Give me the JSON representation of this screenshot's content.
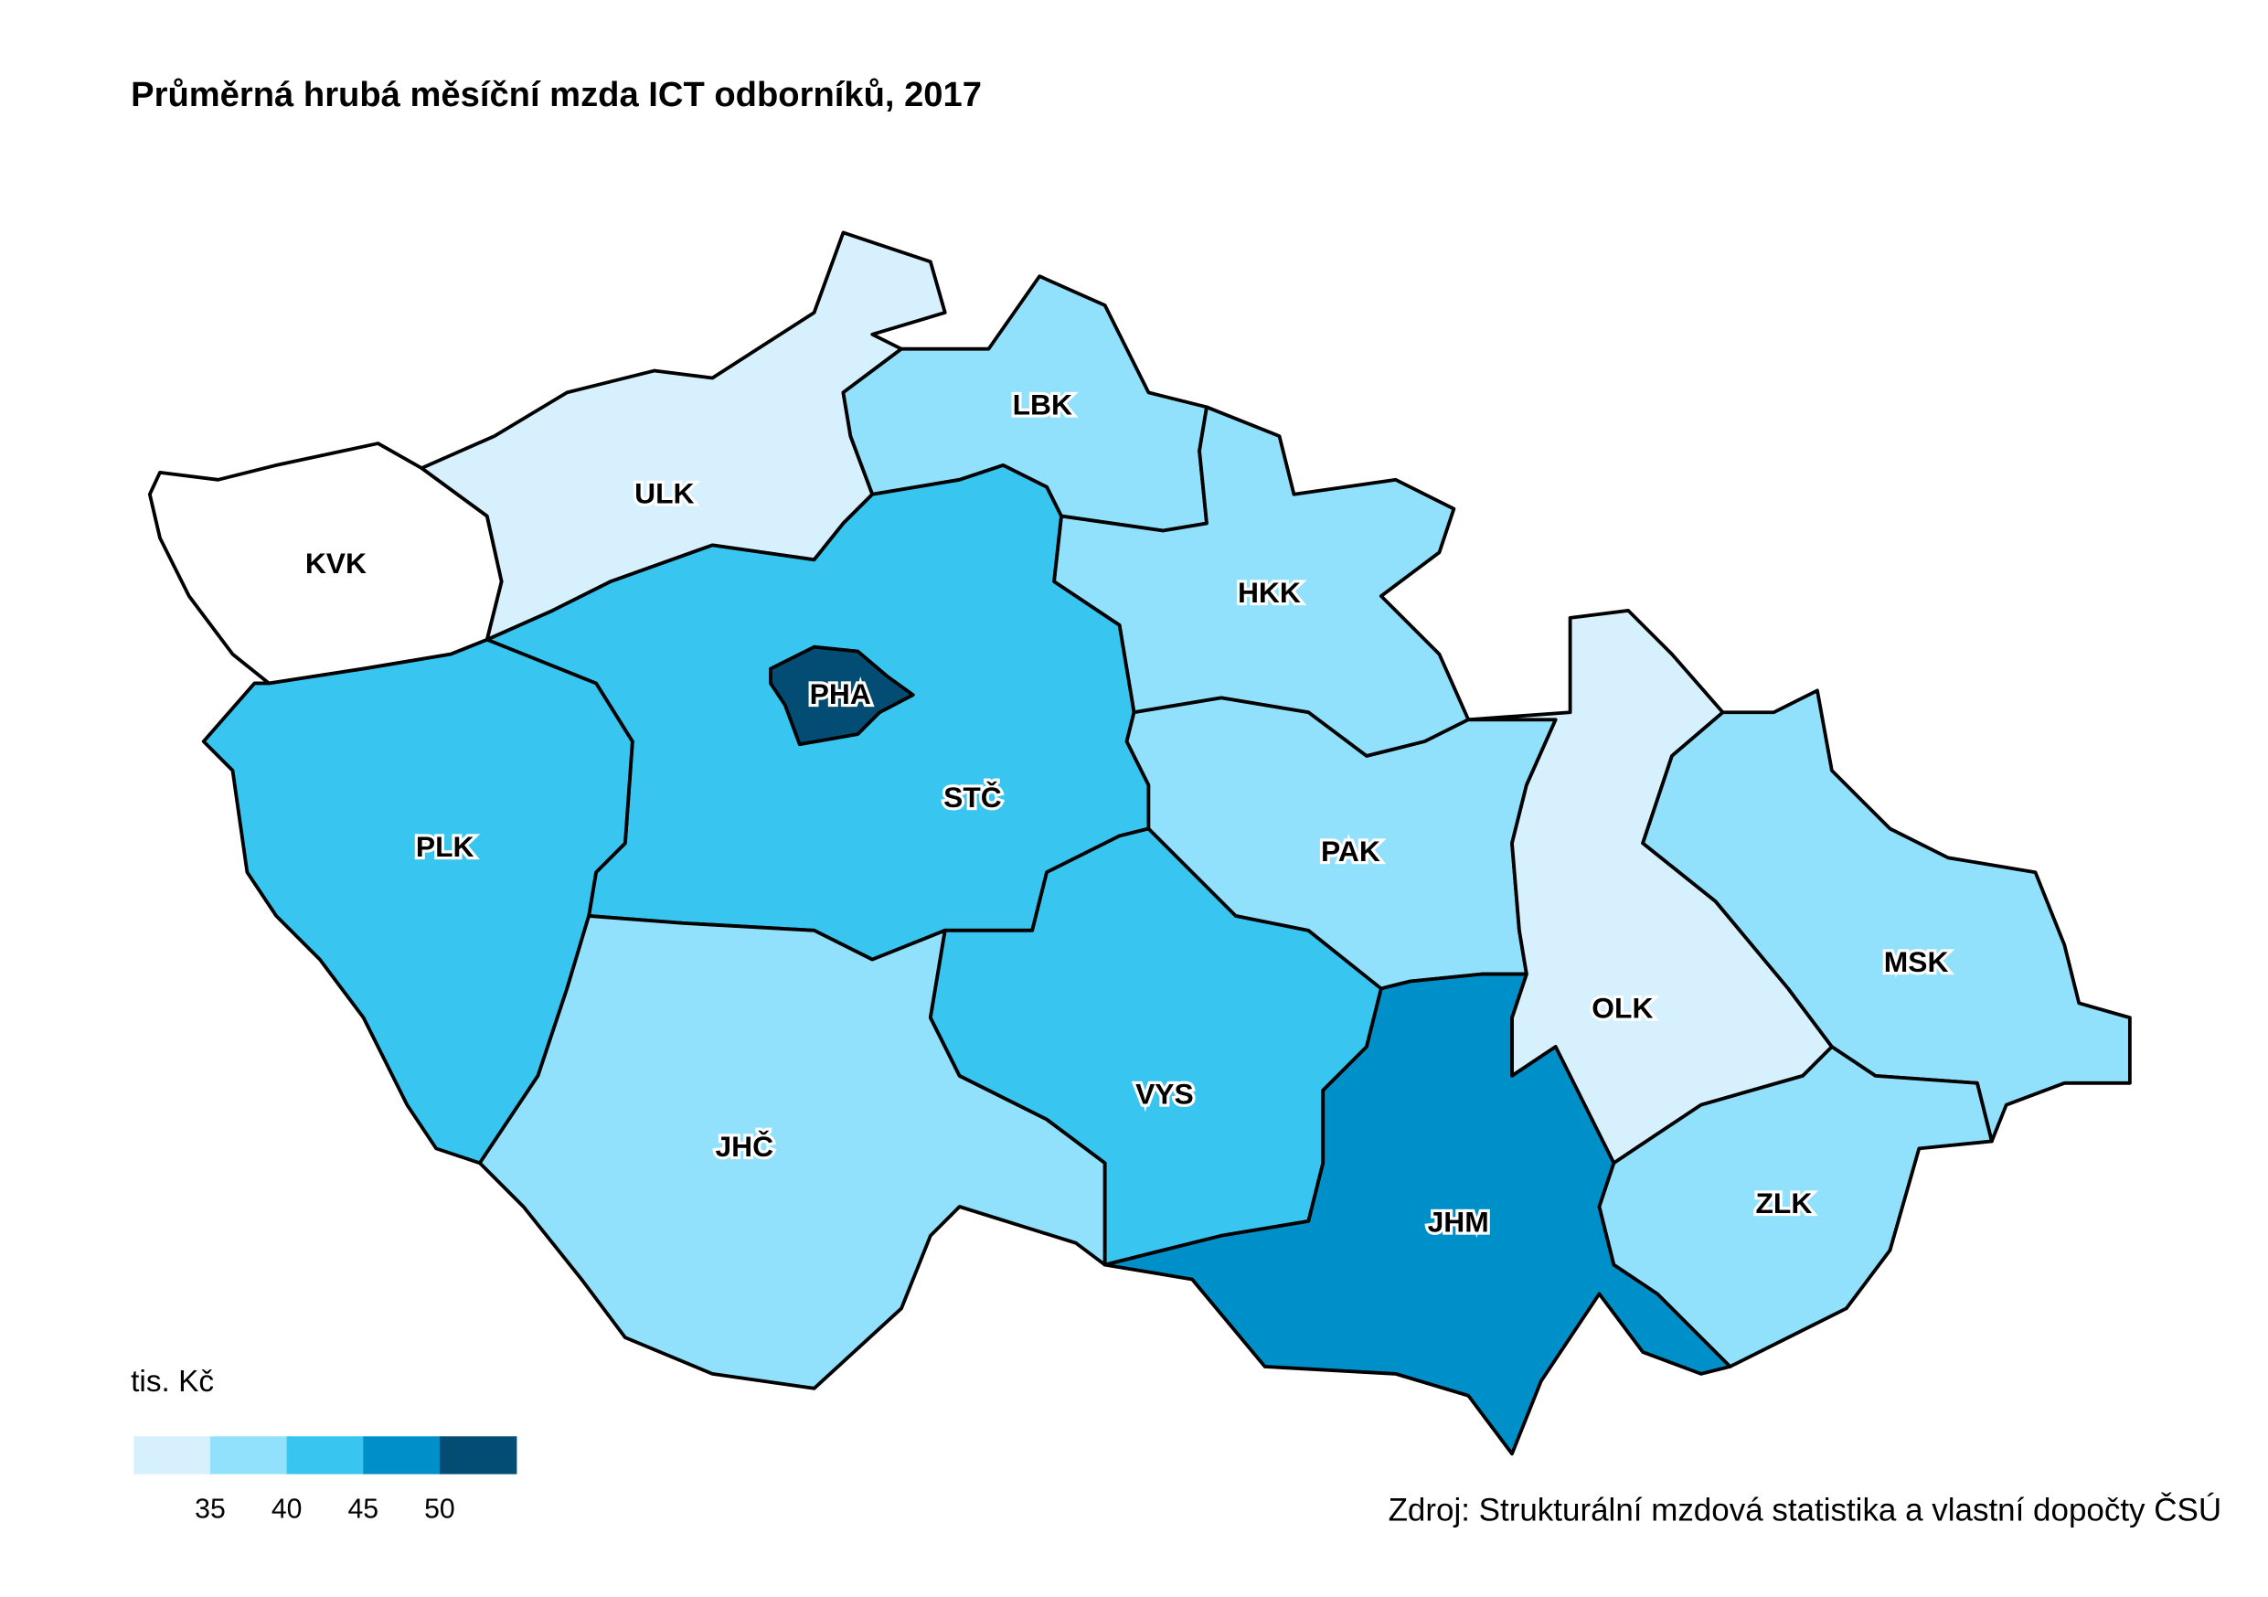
{
  "title": "Průměrná hrubá měsíční mzda ICT odborníků, 2017",
  "source": "Zdroj: Strukturální mzdová statistika a vlastní dopočty ČSÚ",
  "chart_data": {
    "type": "choropleth",
    "title": "Průměrná hrubá měsíční mzda ICT odborníků, 2017",
    "legend": {
      "title": "tis. Kč",
      "placement": "bottom-left",
      "breaks": [
        "35",
        "40",
        "45",
        "50"
      ],
      "colors": [
        "#d6f0fd",
        "#91e1fd",
        "#38c5f0",
        "#0090c9",
        "#034c73"
      ]
    },
    "regions": [
      {
        "code": "KVK",
        "fill": "#ffffff"
      },
      {
        "code": "ULK",
        "fill": "#d6f0fd",
        "class": "<35"
      },
      {
        "code": "LBK",
        "fill": "#91e1fd",
        "class": "35–40"
      },
      {
        "code": "HKK",
        "fill": "#91e1fd",
        "class": "35–40"
      },
      {
        "code": "STČ",
        "fill": "#38c5f0",
        "class": "40–45"
      },
      {
        "code": "PHA",
        "fill": "#034c73",
        "class": ">50"
      },
      {
        "code": "PLK",
        "fill": "#38c5f0",
        "class": "40–45"
      },
      {
        "code": "JHČ",
        "fill": "#91e1fd",
        "class": "35–40"
      },
      {
        "code": "VYS",
        "fill": "#38c5f0",
        "class": "40–45"
      },
      {
        "code": "PAK",
        "fill": "#91e1fd",
        "class": "35–40"
      },
      {
        "code": "OLK",
        "fill": "#d6f0fd",
        "class": "<35"
      },
      {
        "code": "MSK",
        "fill": "#91e1fd",
        "class": "35–40"
      },
      {
        "code": "ZLK",
        "fill": "#91e1fd",
        "class": "35–40"
      },
      {
        "code": "JHM",
        "fill": "#0090c9",
        "class": "45–50"
      }
    ]
  }
}
